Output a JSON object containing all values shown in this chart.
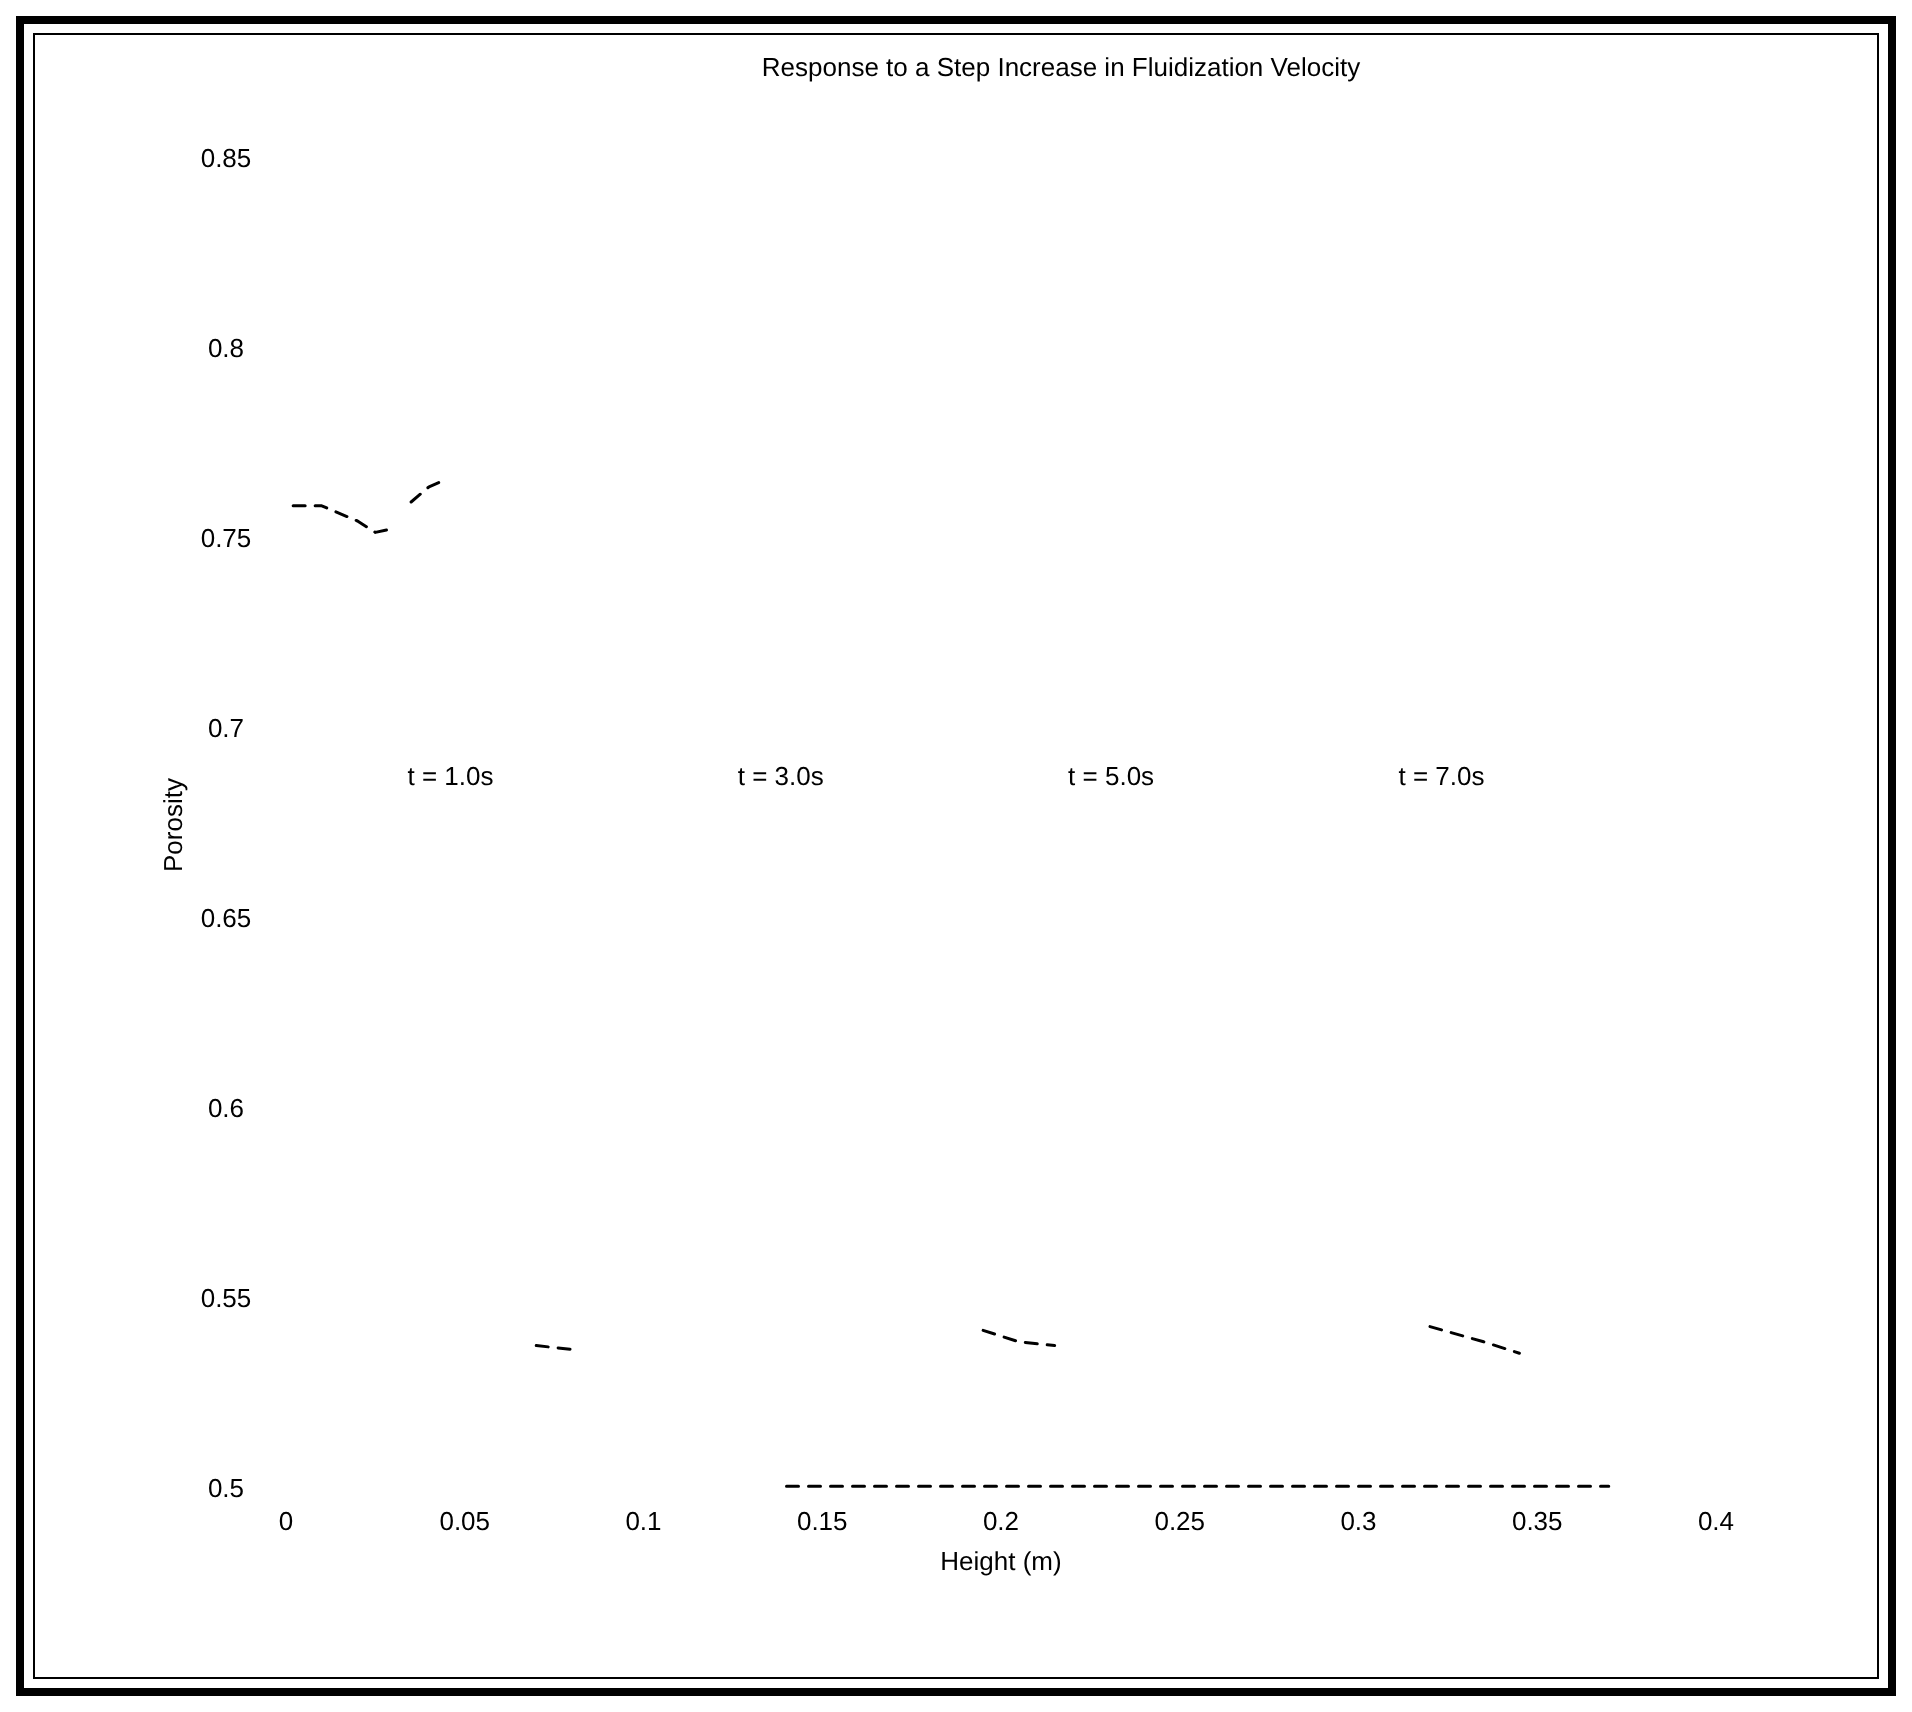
{
  "chart_data": {
    "type": "line",
    "title": "Response to a Step Increase in Fluidization Velocity",
    "xlabel": "Height (m)",
    "ylabel": "Porosity",
    "xlim": [
      0,
      0.4
    ],
    "ylim": [
      0.5,
      0.85
    ],
    "xticks": [
      0,
      0.05,
      0.1,
      0.15,
      0.2,
      0.25,
      0.3,
      0.35,
      0.4
    ],
    "yticks": [
      0.5,
      0.55,
      0.6,
      0.65,
      0.7,
      0.75,
      0.8,
      0.85
    ],
    "grid": false,
    "marker": "none",
    "series": [
      {
        "color": "#000000",
        "line_style": "dashed",
        "x": [
          0.002,
          0.01,
          0.02,
          0.025,
          0.03,
          null,
          0.035,
          0.04,
          0.045,
          null,
          0.07,
          0.08,
          null,
          0.195,
          0.205,
          0.215,
          null,
          0.32,
          0.335,
          0.345
        ],
        "values": [
          0.759,
          0.759,
          0.755,
          0.752,
          0.753,
          null,
          0.76,
          0.764,
          0.766,
          null,
          0.538,
          0.537,
          null,
          0.542,
          0.539,
          0.538,
          null,
          0.543,
          0.539,
          0.536
        ]
      },
      {
        "color": "#000000",
        "line_style": "dashed",
        "x": [
          0.14,
          0.37
        ],
        "values": [
          0.501,
          0.501
        ]
      }
    ],
    "annotations": [
      "t = 1.0s",
      "t = 3.0s",
      "t = 5.0s",
      "t = 7.0s"
    ]
  }
}
